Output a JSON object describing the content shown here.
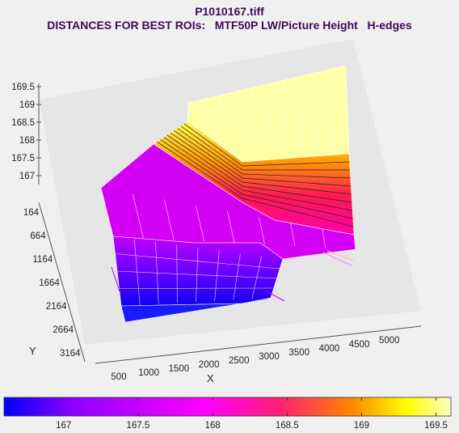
{
  "title": "P1010167.tiff",
  "subtitle": "DISTANCES FOR BEST ROIs:   MTF50P LW/Picture Height   H-edges",
  "chart_data": {
    "type": "surface",
    "xlabel": "X",
    "ylabel": "Y",
    "x_ticks": [
      "500",
      "1000",
      "1500",
      "2000",
      "2500",
      "3000",
      "3500",
      "4000",
      "4500",
      "5000"
    ],
    "y_ticks": [
      "164",
      "664",
      "1164",
      "1664",
      "2164",
      "2664",
      "3164"
    ],
    "z_ticks": [
      "169.5",
      "169",
      "168.5",
      "168",
      "167.5",
      "167"
    ],
    "colorbar": {
      "min": 166.6,
      "max": 169.6,
      "ticks": [
        "167",
        "167.5",
        "168",
        "168.5",
        "169",
        "169.5"
      ],
      "colormap": [
        "#0000ff",
        "#8a00ff",
        "#ff00ff",
        "#ff2070",
        "#ff8800",
        "#ffff00",
        "#ffffc0"
      ]
    },
    "regions": [
      {
        "name": "back-top-plateau",
        "z": 169.5
      },
      {
        "name": "back-slope",
        "z_range": [
          168.0,
          169.5
        ]
      },
      {
        "name": "middle-plateau",
        "z": 168.0
      },
      {
        "name": "front-slope",
        "z_range": [
          166.8,
          168.0
        ]
      },
      {
        "name": "front-low-plateau",
        "z": 166.8
      }
    ]
  }
}
